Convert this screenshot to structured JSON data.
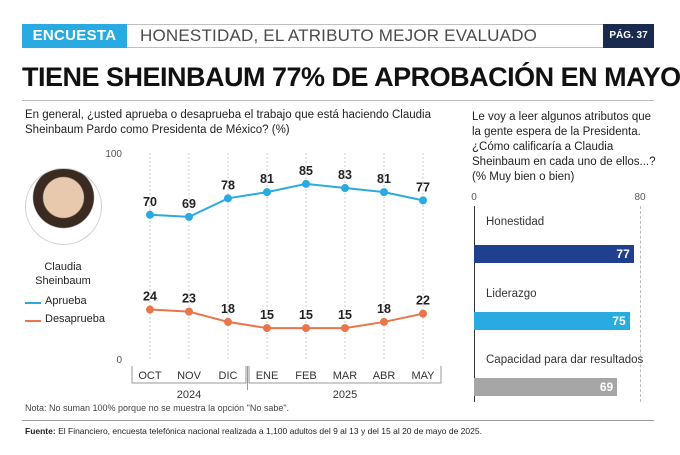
{
  "header": {
    "tag": "ENCUESTA",
    "section": "HONESTIDAD, EL ATRIBUTO MEJOR EVALUADO",
    "page": "PÁG. 37"
  },
  "headline": "TIENE SHEINBAUM 77% DE APROBACIÓN EN MAYO",
  "left_panel": {
    "question": "En general, ¿usted aprueba o desaprueba el trabajo que está haciendo Claudia Sheinbaum Pardo como Presidenta de México?  (%)",
    "person_name": "Claudia Sheinbaum",
    "note": "Nota: No suman 100% porque no se muestra la opción \"No sabe\"."
  },
  "right_panel": {
    "question": "Le voy a leer algunos atributos que la gente espera de la Presidenta. ¿Cómo calificaría a Claudia Sheinbaum en cada uno de ellos...? (% Muy bien o bien)"
  },
  "source": {
    "label": "Fuente:",
    "text": "El Financiero, encuesta telefónica nacional realizada a 1,100 adultos del 9 al 13 y del 15 al 20 de mayo de 2025."
  },
  "colors": {
    "aprueba": "#29abe2",
    "desaprueba": "#e8764a",
    "honestidad": "#1f3f8f",
    "liderazgo": "#29abe2",
    "capacidad": "#a6a6a6"
  },
  "chart_data": [
    {
      "type": "line",
      "title": "",
      "categories": [
        "OCT",
        "NOV",
        "DIC",
        "ENE",
        "FEB",
        "MAR",
        "ABR",
        "MAY"
      ],
      "year_groups": [
        {
          "label": "2024",
          "from": 0,
          "to": 2
        },
        {
          "label": "2025",
          "from": 3,
          "to": 7
        }
      ],
      "series": [
        {
          "name": "Aprueba",
          "values": [
            70,
            69,
            78,
            81,
            85,
            83,
            81,
            77
          ]
        },
        {
          "name": "Desaprueba",
          "values": [
            24,
            23,
            18,
            15,
            15,
            15,
            18,
            22
          ]
        }
      ],
      "ylim": [
        0,
        100
      ],
      "yticks": [
        0,
        100
      ],
      "grid": "vertical dashed"
    },
    {
      "type": "bar",
      "orientation": "horizontal",
      "categories": [
        "Honestidad",
        "Liderazgo",
        "Capacidad para dar resultados"
      ],
      "values": [
        77,
        75,
        69
      ],
      "xlim": [
        0,
        80
      ],
      "xticks": [
        0,
        80
      ]
    }
  ]
}
